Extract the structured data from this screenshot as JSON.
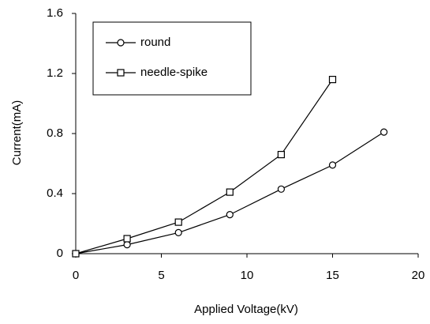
{
  "chart_data": {
    "type": "line",
    "xlabel": "Applied Voltage(kV)",
    "ylabel": "Current(mA)",
    "x": [
      0,
      3,
      6,
      9,
      12,
      15,
      18
    ],
    "series": [
      {
        "name": "round",
        "color": "#000000",
        "marker": "circle",
        "values": [
          0,
          0.06,
          0.14,
          0.26,
          0.43,
          0.59,
          0.81
        ]
      },
      {
        "name": "needle-spike",
        "color": "#000000",
        "marker": "square",
        "values": [
          0,
          0.1,
          0.21,
          0.41,
          0.66,
          1.16,
          null
        ]
      }
    ],
    "xlim": [
      0,
      20
    ],
    "xticks": [
      0,
      5,
      10,
      15,
      20
    ],
    "ylim": [
      0,
      1.6
    ],
    "yticks": [
      0,
      0.4,
      0.8,
      1.2,
      1.6
    ],
    "grid": false,
    "legend": "upper left"
  }
}
